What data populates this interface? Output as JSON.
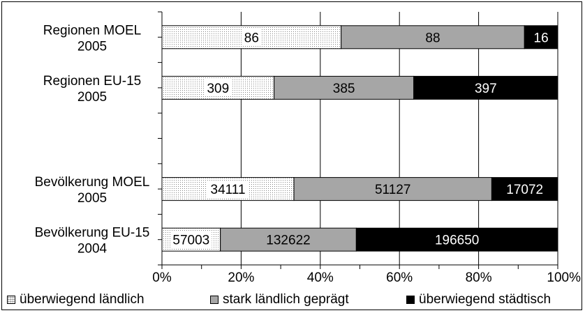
{
  "chart_data": {
    "type": "bar",
    "orientation": "horizontal",
    "stacked": "percent",
    "categories": [
      "Regionen MOEL\n2005",
      "Regionen EU-15\n2005",
      "",
      "Bevölkerung MOEL\n2005",
      "Bevölkerung EU-15\n2004"
    ],
    "series": [
      {
        "name": "überwiegend ländlich",
        "color": "#ffffff",
        "pattern": "dotted",
        "values": [
          86,
          309,
          null,
          34111,
          57003
        ]
      },
      {
        "name": "stark ländlich geprägt",
        "color": "#a6a6a6",
        "values": [
          88,
          385,
          null,
          51127,
          132622
        ]
      },
      {
        "name": "überwiegend städtisch",
        "color": "#000000",
        "values": [
          16,
          397,
          null,
          17072,
          196650
        ]
      }
    ],
    "xticks": [
      "0%",
      "20%",
      "40%",
      "60%",
      "80%",
      "100%"
    ],
    "xlim": [
      0,
      100
    ],
    "grid": "vertical",
    "legend": "bottom",
    "title": "",
    "xlabel": "",
    "ylabel": ""
  }
}
